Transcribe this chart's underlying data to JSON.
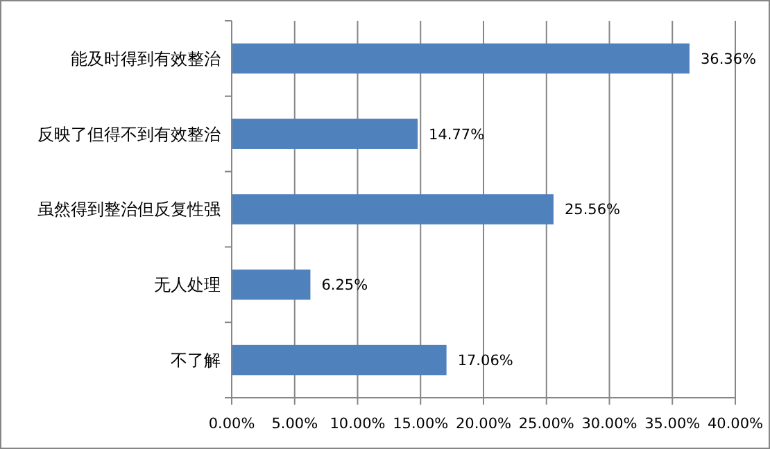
{
  "chart_data": {
    "type": "bar",
    "orientation": "horizontal",
    "categories": [
      "能及时得到有效整治",
      "反映了但得不到有效整治",
      "虽然得到整治但反复性强",
      "无人处理",
      "不了解"
    ],
    "values": [
      36.36,
      14.77,
      25.56,
      6.25,
      17.06
    ],
    "value_labels": [
      "36.36%",
      "14.77%",
      "25.56%",
      "6.25%",
      "17.06%"
    ],
    "color": "#4f81bd",
    "xlim": [
      0,
      40
    ],
    "xticks": [
      {
        "value": 0,
        "label": "0.00%"
      },
      {
        "value": 5,
        "label": "5.00%"
      },
      {
        "value": 10,
        "label": "10.00%"
      },
      {
        "value": 15,
        "label": "15.00%"
      },
      {
        "value": 20,
        "label": "20.00%"
      },
      {
        "value": 25,
        "label": "25.00%"
      },
      {
        "value": 30,
        "label": "30.00%"
      },
      {
        "value": 35,
        "label": "35.00%"
      },
      {
        "value": 40,
        "label": "40.00%"
      }
    ],
    "grid": "x"
  }
}
